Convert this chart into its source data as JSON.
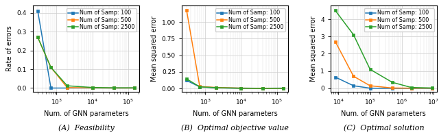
{
  "plot_a": {
    "ylabel": "Rate of errors",
    "xlabel": "Num. of GNN parameters",
    "ylim": [
      -0.02,
      0.44
    ],
    "yticks": [
      0.0,
      0.1,
      0.2,
      0.3,
      0.4
    ],
    "caption": "(A)  Feasibility",
    "series": [
      {
        "label": "Num of Samp: 100",
        "color": "#1f77b4",
        "x": [
          300,
          700,
          2000,
          10000,
          40000,
          150000
        ],
        "y": [
          0.41,
          0.0,
          0.0,
          0.0,
          0.0,
          0.0
        ]
      },
      {
        "label": "Num of Samp: 500",
        "color": "#ff7f0e",
        "x": [
          300,
          700,
          2000,
          10000,
          40000,
          150000
        ],
        "y": [
          0.27,
          0.11,
          0.002,
          0.001,
          0.0,
          0.0
        ]
      },
      {
        "label": "Num of Samp: 2500",
        "color": "#2ca02c",
        "x": [
          300,
          700,
          2000,
          10000,
          40000,
          150000
        ],
        "y": [
          0.27,
          0.11,
          0.012,
          0.003,
          0.001,
          0.001
        ]
      }
    ]
  },
  "plot_b": {
    "ylabel": "Mean squared error",
    "xlabel": "Num. of GNN parameters",
    "ylim": [
      -0.05,
      1.25
    ],
    "yticks": [
      0.0,
      0.25,
      0.5,
      0.75,
      1.0
    ],
    "caption": "(B)  Optimal objective value",
    "series": [
      {
        "label": "Num of Samp: 100",
        "color": "#1f77b4",
        "x": [
          300,
          700,
          2000,
          10000,
          40000,
          150000
        ],
        "y": [
          0.12,
          0.025,
          0.01,
          0.005,
          0.003,
          0.005
        ]
      },
      {
        "label": "Num of Samp: 500",
        "color": "#ff7f0e",
        "x": [
          300,
          700,
          2000,
          10000,
          40000,
          150000
        ],
        "y": [
          1.18,
          0.03,
          0.015,
          0.005,
          0.002,
          0.003
        ]
      },
      {
        "label": "Num of Samp: 2500",
        "color": "#2ca02c",
        "x": [
          300,
          700,
          2000,
          10000,
          40000,
          150000
        ],
        "y": [
          0.145,
          0.025,
          0.012,
          0.003,
          0.001,
          0.003
        ]
      }
    ]
  },
  "plot_c": {
    "ylabel": "Mean squared error",
    "xlabel": "Num. of GNN parameters",
    "ylim": [
      -0.2,
      4.8
    ],
    "yticks": [
      0,
      1,
      2,
      3,
      4
    ],
    "caption": "(C)  Optimal solution",
    "series": [
      {
        "label": "Num of Samp: 100",
        "color": "#1f77b4",
        "x": [
          8000,
          30000,
          100000,
          500000,
          2000000,
          9000000
        ],
        "y": [
          0.65,
          0.15,
          0.01,
          0.0,
          0.0,
          0.0
        ]
      },
      {
        "label": "Num of Samp: 500",
        "color": "#ff7f0e",
        "x": [
          8000,
          30000,
          100000,
          500000,
          2000000,
          9000000
        ],
        "y": [
          2.7,
          0.7,
          0.15,
          0.02,
          0.01,
          0.01
        ]
      },
      {
        "label": "Num of Samp: 2500",
        "color": "#2ca02c",
        "x": [
          8000,
          30000,
          100000,
          500000,
          2000000,
          9000000
        ],
        "y": [
          4.5,
          3.1,
          1.1,
          0.35,
          0.05,
          0.02
        ]
      }
    ]
  },
  "legend_fontsize": 5.8,
  "tick_fontsize": 6.5,
  "label_fontsize": 7,
  "caption_fontsize": 8,
  "marker": "s",
  "markersize": 2.5,
  "linewidth": 1.1
}
